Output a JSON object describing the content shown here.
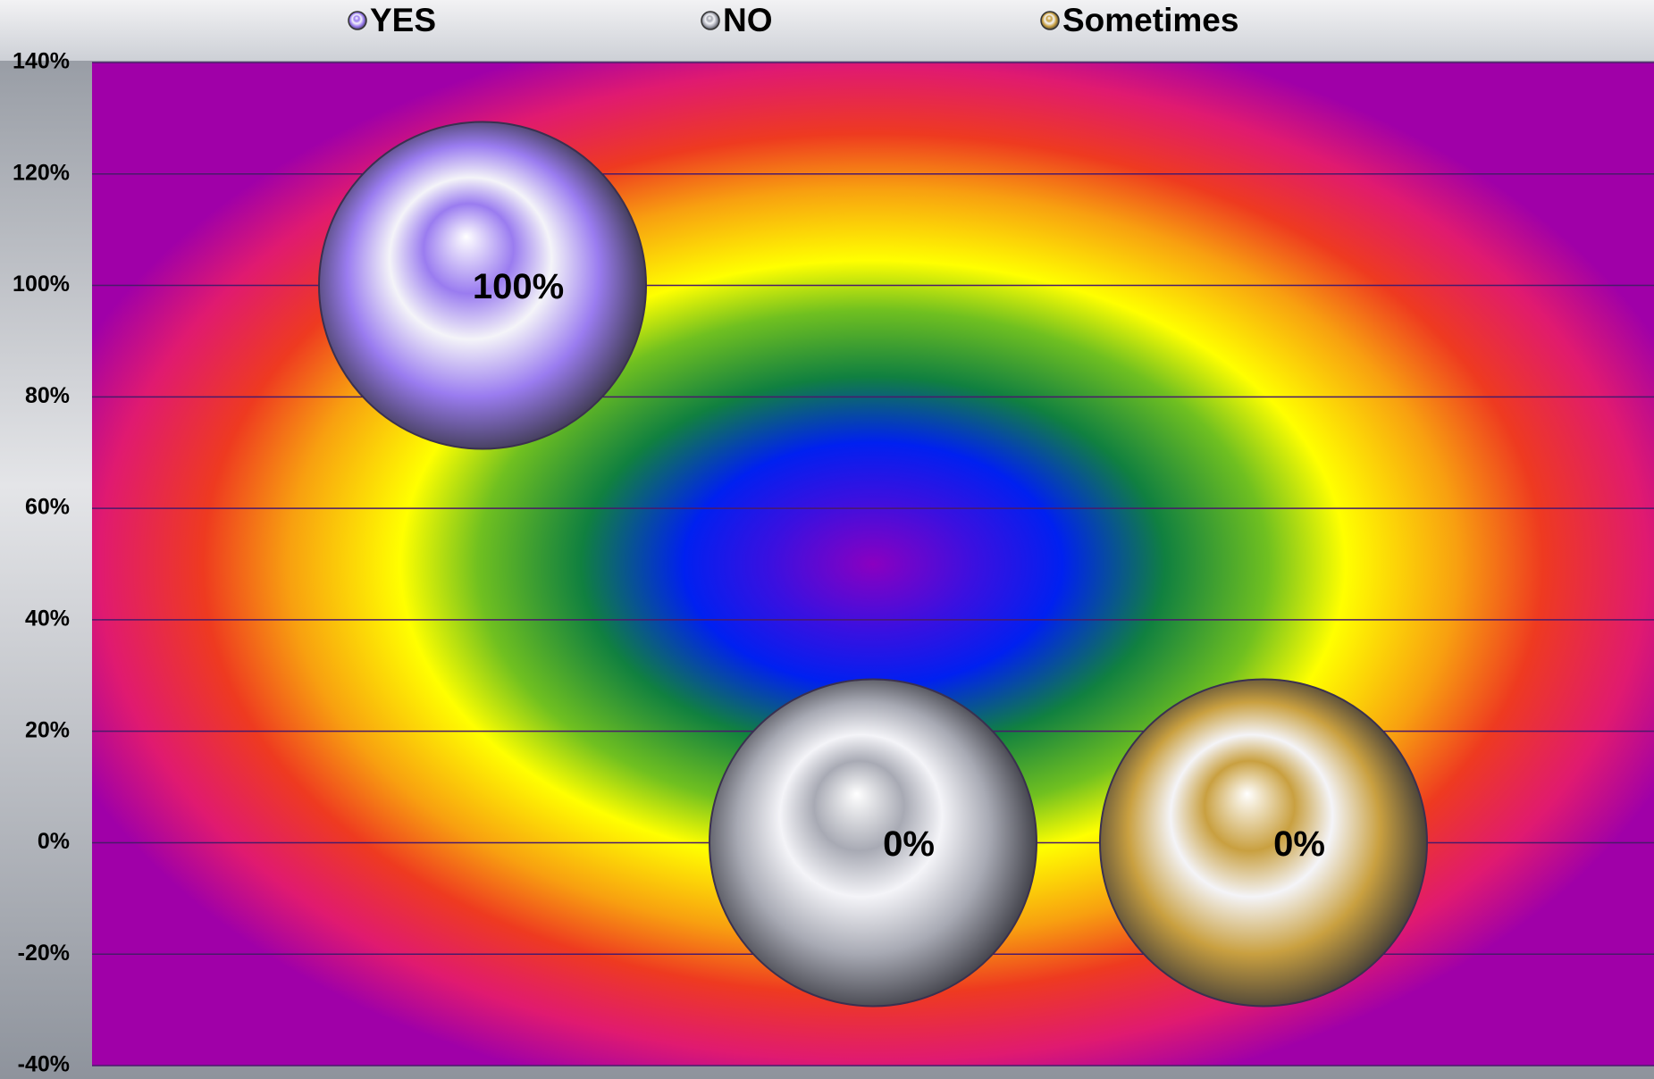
{
  "chart_data": {
    "type": "bubble",
    "series": [
      {
        "name": "YES",
        "color": "#9a7cf0",
        "x": [
          1
        ],
        "values": [
          100
        ],
        "value_labels": [
          "100%"
        ]
      },
      {
        "name": "NO",
        "color": "#a8aab4",
        "x": [
          2
        ],
        "values": [
          0
        ],
        "value_labels": [
          "0%"
        ]
      },
      {
        "name": "Sometimes",
        "color": "#c9a040",
        "x": [
          3
        ],
        "values": [
          0
        ],
        "value_labels": [
          "0%"
        ]
      }
    ],
    "xlim": [
      0,
      4
    ],
    "ylim": [
      -40,
      140
    ],
    "yticks": [
      {
        "value": -40,
        "label": "-40%"
      },
      {
        "value": -20,
        "label": "-20%"
      },
      {
        "value": 0,
        "label": "0%"
      },
      {
        "value": 20,
        "label": "20%"
      },
      {
        "value": 40,
        "label": "40%"
      },
      {
        "value": 60,
        "label": "60%"
      },
      {
        "value": 80,
        "label": "80%"
      },
      {
        "value": 100,
        "label": "100%"
      },
      {
        "value": 120,
        "label": "120%"
      },
      {
        "value": 140,
        "label": "140%"
      }
    ],
    "grid": true,
    "legend": "top"
  }
}
